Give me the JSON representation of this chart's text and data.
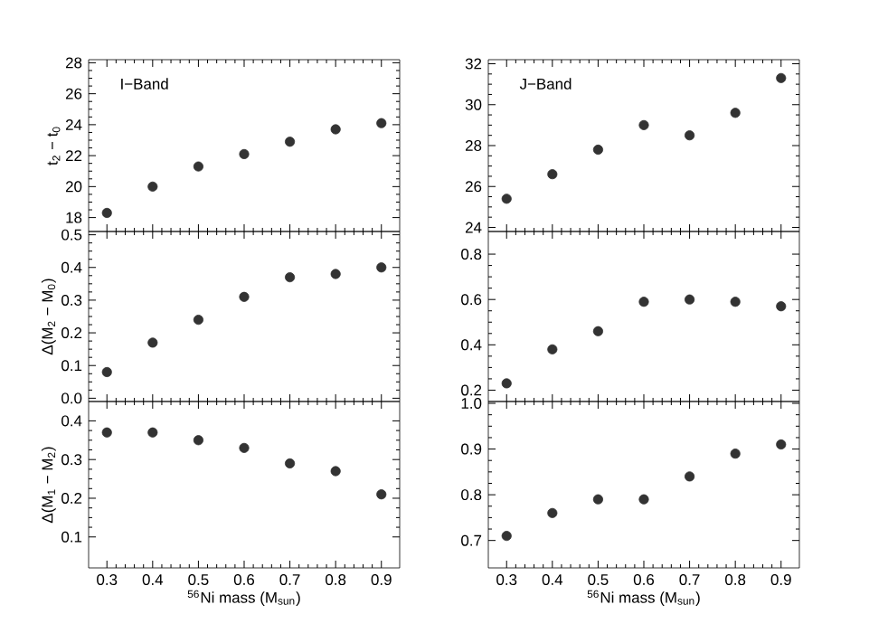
{
  "chart_data": [
    {
      "type": "scatter",
      "ylabel": "t$_{2}$ − t$_{0}$",
      "annotations": [
        "I−Band"
      ],
      "x": [
        0.3,
        0.4,
        0.5,
        0.6,
        0.7,
        0.8,
        0.9
      ],
      "values": [
        18.3,
        20.0,
        21.3,
        22.1,
        22.9,
        23.7,
        24.1
      ],
      "color": "#333333",
      "marker": "circle",
      "xlim": [
        0.26,
        0.94
      ],
      "ylim": [
        17.1,
        28.2
      ],
      "xticks": [
        0.3,
        0.4,
        0.5,
        0.6,
        0.7,
        0.8,
        0.9
      ],
      "yticks": [
        18,
        20,
        22,
        24,
        26,
        28
      ],
      "tick_labels": "y",
      "grid": false
    },
    {
      "type": "scatter",
      "annotations": [
        "J−Band"
      ],
      "x": [
        0.3,
        0.4,
        0.5,
        0.6,
        0.7,
        0.8,
        0.9
      ],
      "values": [
        25.4,
        26.6,
        27.8,
        29.0,
        28.5,
        29.6,
        31.3
      ],
      "color": "#333333",
      "marker": "circle",
      "xlim": [
        0.26,
        0.94
      ],
      "ylim": [
        23.8,
        32.2
      ],
      "xticks": [
        0.3,
        0.4,
        0.5,
        0.6,
        0.7,
        0.8,
        0.9
      ],
      "yticks": [
        24,
        26,
        28,
        30,
        32
      ],
      "tick_labels": "y",
      "grid": false
    },
    {
      "type": "scatter",
      "ylabel": "Δ(M$_{2}$ − M$_{0}$)",
      "x": [
        0.3,
        0.4,
        0.5,
        0.6,
        0.7,
        0.8,
        0.9
      ],
      "values": [
        0.08,
        0.17,
        0.24,
        0.31,
        0.37,
        0.38,
        0.4
      ],
      "color": "#333333",
      "marker": "circle",
      "xlim": [
        0.26,
        0.94
      ],
      "ylim": [
        -0.01,
        0.51
      ],
      "xticks": [
        0.3,
        0.4,
        0.5,
        0.6,
        0.7,
        0.8,
        0.9
      ],
      "yticks": [
        {
          "value": 0,
          "label": "0.0"
        },
        0.1,
        0.2,
        0.3,
        0.4,
        0.5
      ],
      "tick_labels": "y",
      "grid": false
    },
    {
      "type": "scatter",
      "x": [
        0.3,
        0.4,
        0.5,
        0.6,
        0.7,
        0.8,
        0.9
      ],
      "values": [
        0.23,
        0.38,
        0.46,
        0.59,
        0.6,
        0.59,
        0.57
      ],
      "color": "#333333",
      "marker": "circle",
      "xlim": [
        0.26,
        0.94
      ],
      "ylim": [
        0.15,
        0.9
      ],
      "xticks": [
        0.3,
        0.4,
        0.5,
        0.6,
        0.7,
        0.8,
        0.9
      ],
      "yticks": [
        0.2,
        0.4,
        0.6,
        0.8
      ],
      "tick_labels": "y",
      "grid": false
    },
    {
      "type": "scatter",
      "ylabel": "Δ(M$_{1}$ − M$_{2}$)",
      "xlabel": "$^{56}$Ni mass (M$_{sun}$)",
      "x": [
        0.3,
        0.4,
        0.5,
        0.6,
        0.7,
        0.8,
        0.9
      ],
      "values": [
        0.37,
        0.37,
        0.35,
        0.33,
        0.29,
        0.27,
        0.21
      ],
      "color": "#333333",
      "marker": "circle",
      "xlim": [
        0.26,
        0.94
      ],
      "ylim": [
        0.02,
        0.45
      ],
      "xticks": [
        0.3,
        0.4,
        0.5,
        0.6,
        0.7,
        0.8,
        0.9
      ],
      "yticks": [
        0.1,
        0.2,
        0.3,
        0.4
      ],
      "grid": false
    },
    {
      "type": "scatter",
      "xlabel": "$^{56}$Ni mass (M$_{sun}$)",
      "x": [
        0.3,
        0.4,
        0.5,
        0.6,
        0.7,
        0.8,
        0.9
      ],
      "values": [
        0.71,
        0.76,
        0.79,
        0.79,
        0.84,
        0.89,
        0.91
      ],
      "color": "#333333",
      "marker": "circle",
      "xlim": [
        0.26,
        0.94
      ],
      "ylim": [
        0.64,
        1.004
      ],
      "xticks": [
        0.3,
        0.4,
        0.5,
        0.6,
        0.7,
        0.8,
        0.9
      ],
      "yticks": [
        0.7,
        0.8,
        0.9,
        {
          "value": 1.0,
          "label": "1.0"
        }
      ],
      "grid": false
    }
  ]
}
